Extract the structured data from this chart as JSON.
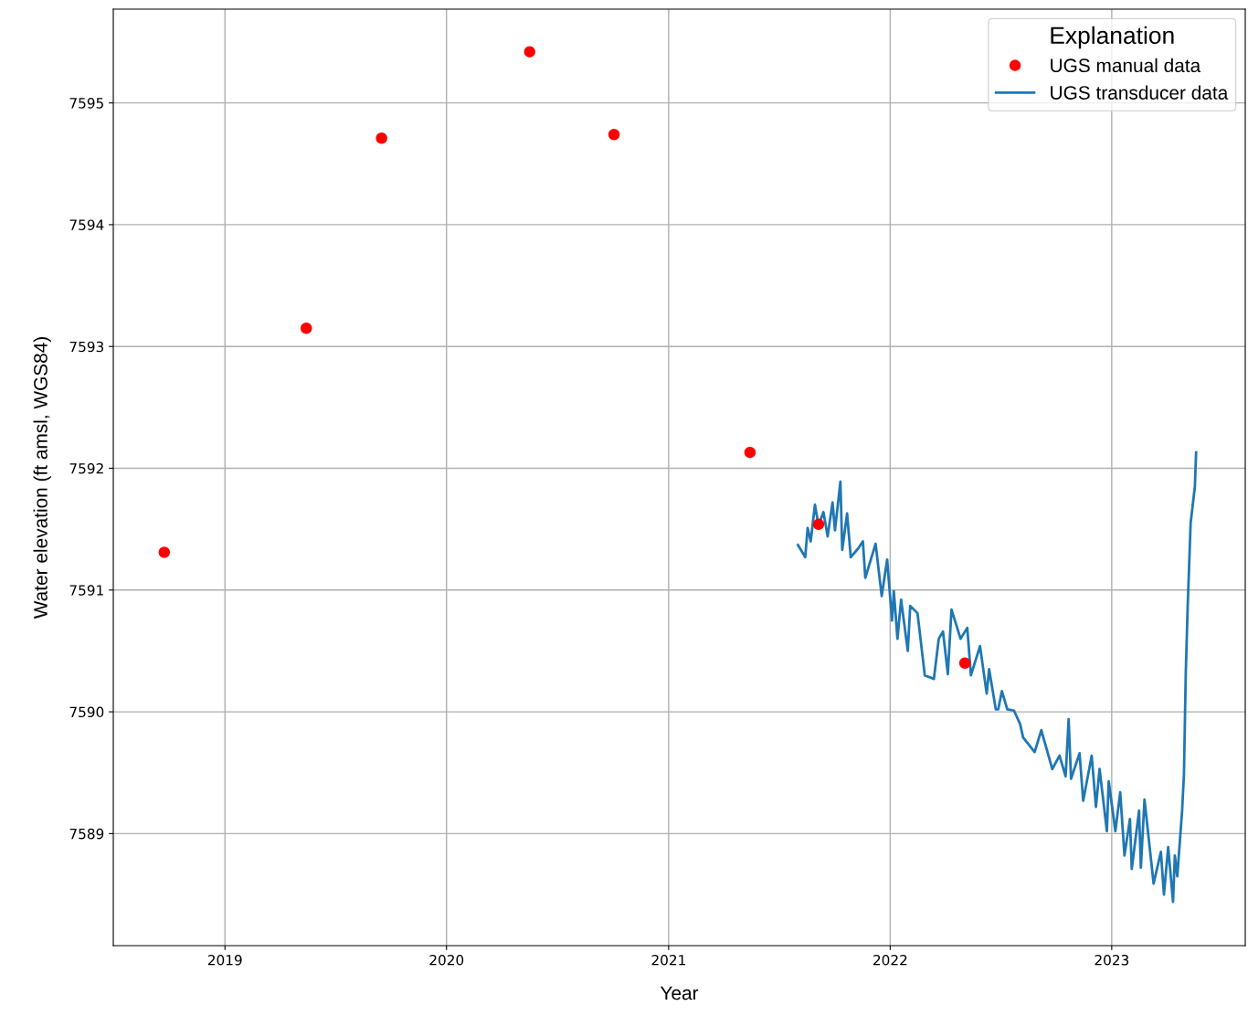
{
  "chart_data": {
    "type": "scatter",
    "xlabel": "Year",
    "ylabel": "Water elevation (ft amsl, WGS84)",
    "legend_title": "Explanation",
    "legend": "top right",
    "grid": true,
    "xlim": [
      "2018-07-01",
      "2023-08-09"
    ],
    "ylim": [
      7588.08,
      7595.77
    ],
    "xticks": [
      "2019",
      "2020",
      "2021",
      "2022",
      "2023"
    ],
    "yticks": [
      7589,
      7590,
      7591,
      7592,
      7593,
      7594,
      7595
    ],
    "series": [
      {
        "name": "UGS manual data",
        "marker": "circle",
        "color": "#ff0000",
        "x": [
          "2018-09-23",
          "2019-05-15",
          "2019-09-16",
          "2020-05-17",
          "2020-10-03",
          "2021-05-15",
          "2021-09-05",
          "2022-05-04"
        ],
        "values": [
          7591.31,
          7593.15,
          7594.71,
          7595.42,
          7594.74,
          7592.13,
          7591.54,
          7590.4
        ]
      },
      {
        "name": "UGS transducer data",
        "type": "line",
        "line_style": "solid",
        "color": "#1f77b4",
        "x": [
          "2021-08-02",
          "2021-08-14",
          "2021-08-18",
          "2021-08-23",
          "2021-08-30",
          "2021-09-05",
          "2021-09-13",
          "2021-09-20",
          "2021-09-28",
          "2021-10-02",
          "2021-10-11",
          "2021-10-14",
          "2021-10-22",
          "2021-10-28",
          "2021-11-09",
          "2021-11-17",
          "2021-11-21",
          "2021-12-08",
          "2021-12-18",
          "2021-12-27",
          "2022-01-04",
          "2022-01-07",
          "2022-01-13",
          "2022-01-19",
          "2022-01-30",
          "2022-02-03",
          "2022-02-15",
          "2022-02-27",
          "2022-03-14",
          "2022-03-22",
          "2022-03-29",
          "2022-04-06",
          "2022-04-12",
          "2022-04-27",
          "2022-05-08",
          "2022-05-14",
          "2022-05-29",
          "2022-06-09",
          "2022-06-13",
          "2022-06-24",
          "2022-06-28",
          "2022-07-04",
          "2022-07-13",
          "2022-07-24",
          "2022-08-03",
          "2022-08-08",
          "2022-08-27",
          "2022-09-07",
          "2022-09-25",
          "2022-10-07",
          "2022-10-17",
          "2022-10-22",
          "2022-10-26",
          "2022-11-09",
          "2022-11-15",
          "2022-11-29",
          "2022-12-06",
          "2022-12-12",
          "2022-12-24",
          "2022-12-27",
          "2023-01-07",
          "2023-01-15",
          "2023-01-22",
          "2023-01-31",
          "2023-02-03",
          "2023-02-15",
          "2023-02-18",
          "2023-02-24",
          "2023-03-11",
          "2023-03-23",
          "2023-03-28",
          "2023-04-04",
          "2023-04-12",
          "2023-04-15",
          "2023-04-19",
          "2023-04-27",
          "2023-04-30",
          "2023-05-03",
          "2023-05-06",
          "2023-05-11",
          "2023-05-18",
          "2023-05-20"
        ],
        "values": [
          7591.37,
          7591.27,
          7591.51,
          7591.4,
          7591.7,
          7591.53,
          7591.64,
          7591.44,
          7591.72,
          7591.49,
          7591.89,
          7591.33,
          7591.63,
          7591.27,
          7591.34,
          7591.4,
          7591.1,
          7591.38,
          7590.95,
          7591.25,
          7590.75,
          7590.99,
          7590.6,
          7590.92,
          7590.5,
          7590.87,
          7590.81,
          7590.3,
          7590.27,
          7590.6,
          7590.66,
          7590.31,
          7590.84,
          7590.6,
          7590.69,
          7590.3,
          7590.54,
          7590.15,
          7590.35,
          7590.02,
          7590.02,
          7590.17,
          7590.02,
          7590.01,
          7589.9,
          7589.79,
          7589.67,
          7589.85,
          7589.53,
          7589.64,
          7589.47,
          7589.94,
          7589.45,
          7589.66,
          7589.27,
          7589.64,
          7589.22,
          7589.53,
          7589.02,
          7589.43,
          7589.02,
          7589.34,
          7588.82,
          7589.12,
          7588.71,
          7589.19,
          7588.72,
          7589.28,
          7588.59,
          7588.85,
          7588.5,
          7588.89,
          7588.44,
          7588.82,
          7588.65,
          7589.19,
          7589.49,
          7590.32,
          7590.84,
          7591.55,
          7591.85,
          7592.13
        ]
      }
    ]
  }
}
